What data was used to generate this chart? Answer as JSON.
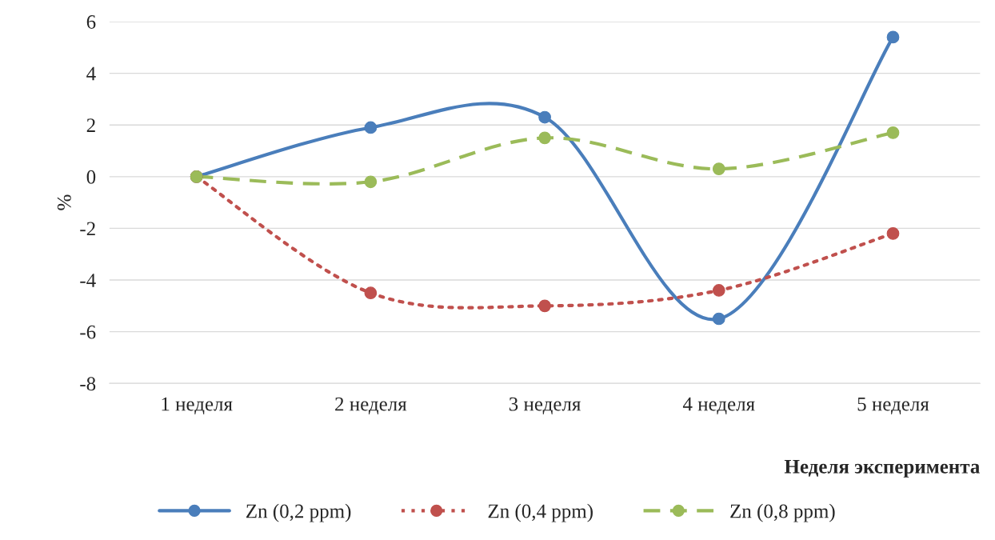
{
  "chart_data": {
    "type": "line",
    "xlabel": "Неделя эксперимента",
    "ylabel": "%",
    "categories": [
      "1 неделя",
      "2 неделя",
      "3 неделя",
      "4 неделя",
      "5 неделя"
    ],
    "series": [
      {
        "name": "Zn (0,2 ppm)",
        "color": "#4a7ebb",
        "line_style": "solid",
        "values": [
          0,
          1.9,
          2.3,
          -5.5,
          5.4
        ]
      },
      {
        "name": "Zn (0,4 ppm)",
        "color": "#c0504d",
        "line_style": "dotted",
        "values": [
          0,
          -4.5,
          -5.0,
          -4.4,
          -2.2
        ]
      },
      {
        "name": "Zn (0,8 ppm)",
        "color": "#9bbb59",
        "line_style": "dashed",
        "values": [
          0,
          -0.2,
          1.5,
          0.3,
          1.7
        ]
      }
    ],
    "ylim": [
      -8,
      6
    ],
    "yticks": [
      -8,
      -6,
      -4,
      -2,
      0,
      2,
      4,
      6
    ],
    "grid": "y",
    "legend": "bottom",
    "marker": "circle"
  }
}
